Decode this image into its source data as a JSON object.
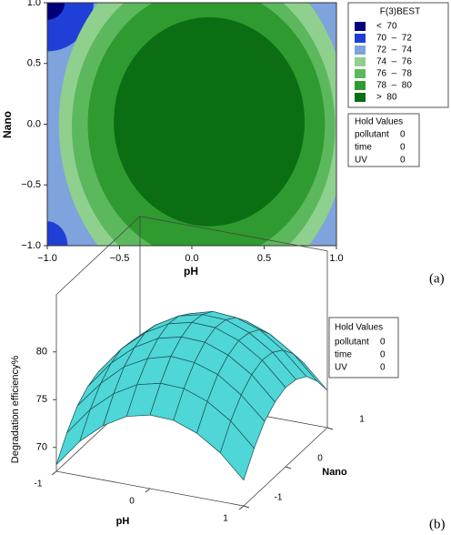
{
  "chart_data": [
    {
      "type": "contour",
      "xlabel": "pH",
      "ylabel": "Nano",
      "panel_label": "(a)",
      "xlim": [
        -1,
        1
      ],
      "ylim": [
        -1,
        1
      ],
      "xticks": [
        {
          "value": -1,
          "label": "−1.0"
        },
        {
          "value": -0.5,
          "label": "−0.5"
        },
        {
          "value": 0,
          "label": "0.0"
        },
        {
          "value": 0.5,
          "label": "0.5"
        },
        {
          "value": 1,
          "label": "1.0"
        }
      ],
      "yticks": [
        {
          "value": -1,
          "label": "−1.0"
        },
        {
          "value": -0.5,
          "label": "−0.5"
        },
        {
          "value": 0,
          "label": "0.0"
        },
        {
          "value": 0.5,
          "label": "0.5"
        },
        {
          "value": 1,
          "label": "1.0"
        }
      ],
      "legend_title": "F(3)BEST",
      "levels": [
        70,
        72,
        74,
        76,
        78,
        80
      ],
      "legend_labels": [
        "<  70",
        "70  –  72",
        "72  –  74",
        "74  –  76",
        "76  –  78",
        "78  –  80",
        ">  80"
      ],
      "colors": [
        "#00007a",
        "#1f3fd6",
        "#7fa3dc",
        "#8fd08f",
        "#5cb85c",
        "#2f9a2f",
        "#0b6e12"
      ],
      "hold_values_title": "Hold Values",
      "hold_values": [
        {
          "name": "pollutant",
          "value": 0
        },
        {
          "name": "time",
          "value": 0
        },
        {
          "name": "UV",
          "value": 0
        }
      ]
    },
    {
      "type": "surface",
      "xlabel": "pH",
      "ylabel": "Nano",
      "zlabel": "Degradation efficiency%",
      "panel_label": "(b)",
      "xlim": [
        -1,
        1
      ],
      "ylim": [
        -1,
        1
      ],
      "zlim": [
        67.5,
        86
      ],
      "xticks": [
        -1,
        0,
        1
      ],
      "yticks": [
        -1,
        0,
        1
      ],
      "zticks": [
        70,
        75,
        80
      ],
      "color": "#4fd6d6",
      "x": [
        -1,
        -0.75,
        -0.5,
        -0.25,
        0,
        0.25,
        0.5,
        0.75,
        1
      ],
      "y": [
        -1,
        -0.75,
        -0.5,
        -0.25,
        0,
        0.25,
        0.5,
        0.75,
        1
      ],
      "z": [
        [
          68.2,
          71.1,
          73.2,
          74.6,
          75.2,
          75.1,
          74.2,
          72.6,
          70.2
        ],
        [
          70.5,
          73.4,
          75.5,
          76.9,
          77.5,
          77.4,
          76.5,
          74.9,
          72.5
        ],
        [
          72.3,
          75.1,
          77.3,
          78.6,
          79.3,
          79.1,
          78.3,
          76.6,
          74.3
        ],
        [
          73.3,
          76.2,
          78.3,
          79.7,
          80.3,
          80.2,
          79.3,
          77.7,
          75.3
        ],
        [
          73.8,
          76.7,
          78.8,
          80.2,
          80.8,
          80.7,
          79.8,
          78.2,
          75.8
        ],
        [
          73.6,
          76.5,
          78.6,
          80,
          80.6,
          80.5,
          79.6,
          78,
          75.6
        ],
        [
          72.9,
          75.7,
          77.9,
          79.2,
          79.9,
          79.7,
          78.9,
          77.2,
          74.9
        ],
        [
          71.4,
          74.3,
          76.4,
          77.8,
          78.4,
          78.3,
          77.4,
          75.8,
          73.4
        ],
        [
          69.4,
          72.3,
          74.4,
          75.8,
          76.4,
          76.3,
          75.4,
          73.8,
          71.4
        ]
      ],
      "hold_values_title": "Hold Values",
      "hold_values": [
        {
          "name": "pollutant",
          "value": 0
        },
        {
          "name": "time",
          "value": 0
        },
        {
          "name": "UV",
          "value": 0
        }
      ]
    }
  ]
}
